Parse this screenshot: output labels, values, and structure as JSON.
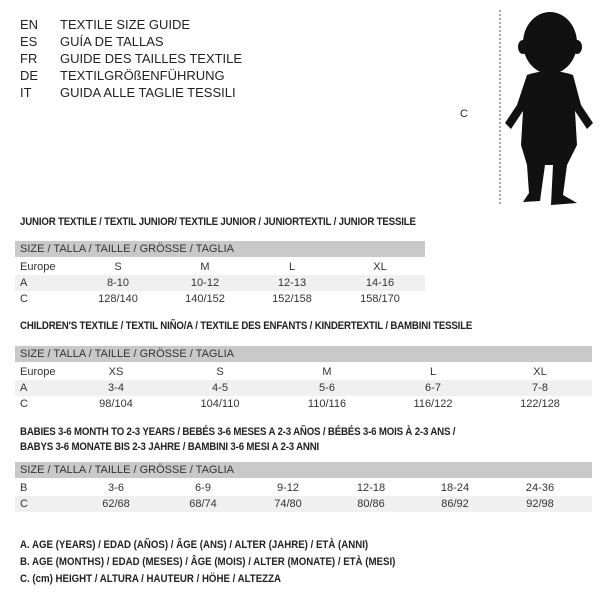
{
  "languages": [
    {
      "code": "EN",
      "title": "TEXTILE SIZE GUIDE"
    },
    {
      "code": "ES",
      "title": "GUÍA DE TALLAS"
    },
    {
      "code": "FR",
      "title": "GUIDE DES TAILLES TEXTILE"
    },
    {
      "code": "DE",
      "title": "TEXTILGRÖßENFÜHRUNG"
    },
    {
      "code": "IT",
      "title": "GUIDA ALLE TAGLIE TESSILI"
    }
  ],
  "figure": {
    "height_label": "C"
  },
  "size_header": "SIZE / TALLA / TAILLE / GRÖSSE / TAGLIA",
  "junior": {
    "heading": "JUNIOR TEXTILE / TEXTIL JUNIOR/ TEXTILE JUNIOR / JUNIORTEXTIL / JUNIOR TESSILE",
    "rows": [
      {
        "label": "Europe",
        "values": [
          "S",
          "M",
          "L",
          "XL"
        ]
      },
      {
        "label": "A",
        "values": [
          "8-10",
          "10-12",
          "12-13",
          "14-16"
        ]
      },
      {
        "label": "C",
        "values": [
          "128/140",
          "140/152",
          "152/158",
          "158/170"
        ]
      }
    ]
  },
  "children": {
    "heading": "CHILDREN'S TEXTILE / TEXTIL NIÑO/A / TEXTILE DES ENFANTS / KINDERTEXTIL / BAMBINI TESSILE",
    "rows": [
      {
        "label": "Europe",
        "values": [
          "XS",
          "S",
          "M",
          "L",
          "XL"
        ]
      },
      {
        "label": "A",
        "values": [
          "3-4",
          "4-5",
          "5-6",
          "6-7",
          "7-8"
        ]
      },
      {
        "label": "C",
        "values": [
          "98/104",
          "104/110",
          "110/116",
          "116/122",
          "122/128"
        ]
      }
    ]
  },
  "babies": {
    "heading_line1": "BABIES 3-6 MONTH TO 2-3 YEARS / BEBÉS 3-6 MESES A 2-3 AÑOS / BÉBÉS 3-6 MOIS À 2-3 ANS /",
    "heading_line2": "BABYS 3-6 MONATE BIS 2-3 JAHRE / BAMBINI 3-6 MESI A 2-3 ANNI",
    "rows": [
      {
        "label": "B",
        "values": [
          "3-6",
          "6-9",
          "9-12",
          "12-18",
          "18-24",
          "24-36"
        ]
      },
      {
        "label": "C",
        "values": [
          "62/68",
          "68/74",
          "74/80",
          "80/86",
          "86/92",
          "92/98"
        ]
      }
    ]
  },
  "legend": [
    "A. AGE (YEARS) / EDAD (AÑOS) / ÂGE (ANS) / ALTER (JAHRE) / ETÀ (ANNI)",
    "B. AGE (MONTHS) / EDAD (MESES) / ÂGE (MOIS) / ALTER (MONATE) / ETÀ (MESI)",
    "C. (cm) HEIGHT / ALTURA / HAUTEUR / HÖHE / ALTEZZA"
  ]
}
